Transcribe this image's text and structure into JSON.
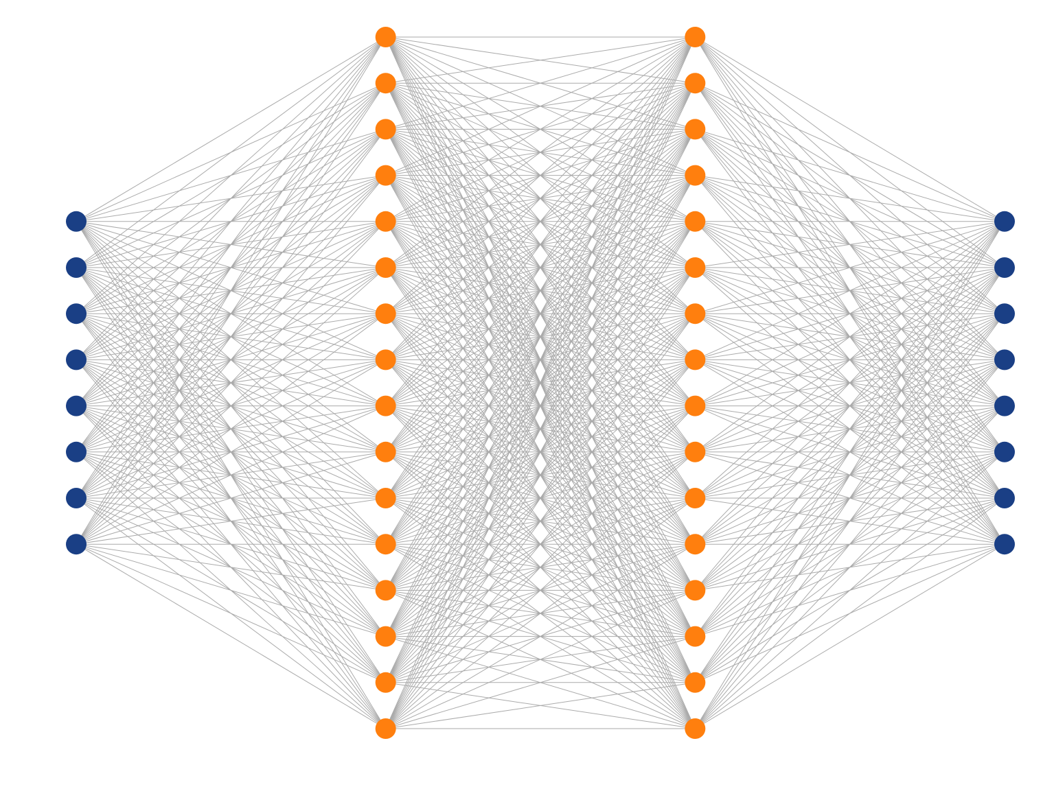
{
  "layers": [
    {
      "nodes": 8,
      "color": "#1a3f85"
    },
    {
      "nodes": 16,
      "color": "#ff7f0e"
    },
    {
      "nodes": 16,
      "color": "#ff7f0e"
    },
    {
      "nodes": 8,
      "color": "#1a3f85"
    }
  ]
}
